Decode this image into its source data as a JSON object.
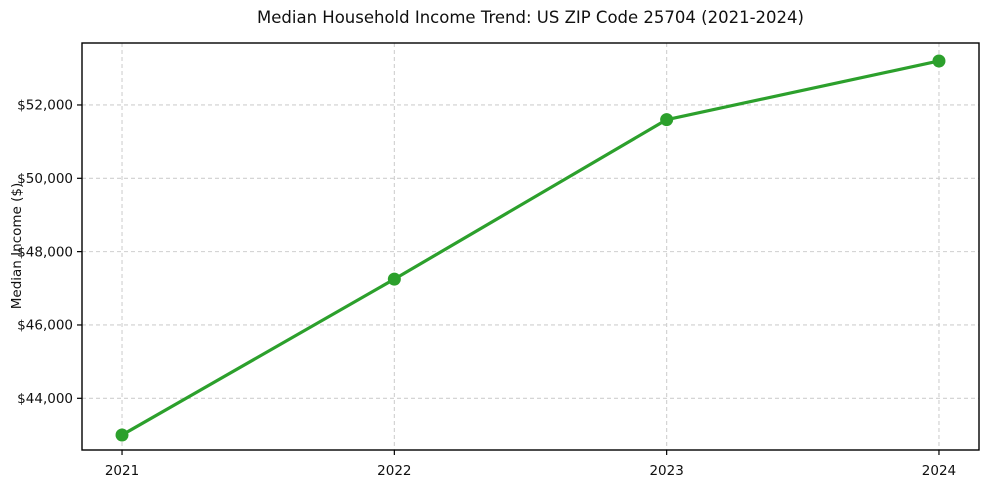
{
  "chart_data": {
    "type": "line",
    "title": "Median Household Income Trend: US ZIP Code 25704 (2021-2024)",
    "xlabel": "",
    "ylabel": "Median Income ($)",
    "x": [
      2021,
      2022,
      2023,
      2024
    ],
    "x_tick_labels": [
      "2021",
      "2022",
      "2023",
      "2024"
    ],
    "series": [
      {
        "name": "Median Household Income",
        "values": [
          43000,
          47250,
          51600,
          53200
        ]
      }
    ],
    "y_ticks": [
      44000,
      46000,
      48000,
      50000,
      52000
    ],
    "y_tick_labels": [
      "$44,000",
      "$46,000",
      "$48,000",
      "$50,000",
      "$52,000"
    ],
    "xlim": [
      2020.853,
      2024.147
    ],
    "ylim": [
      42590,
      53690
    ],
    "grid": true,
    "grid_style": "dashed",
    "legend": "none",
    "colors": {
      "line": "#2ca02c",
      "marker": "#2ca02c",
      "grid": "#cfcfcf",
      "spine": "#000000",
      "text": "#101010",
      "background": "#ffffff"
    }
  }
}
